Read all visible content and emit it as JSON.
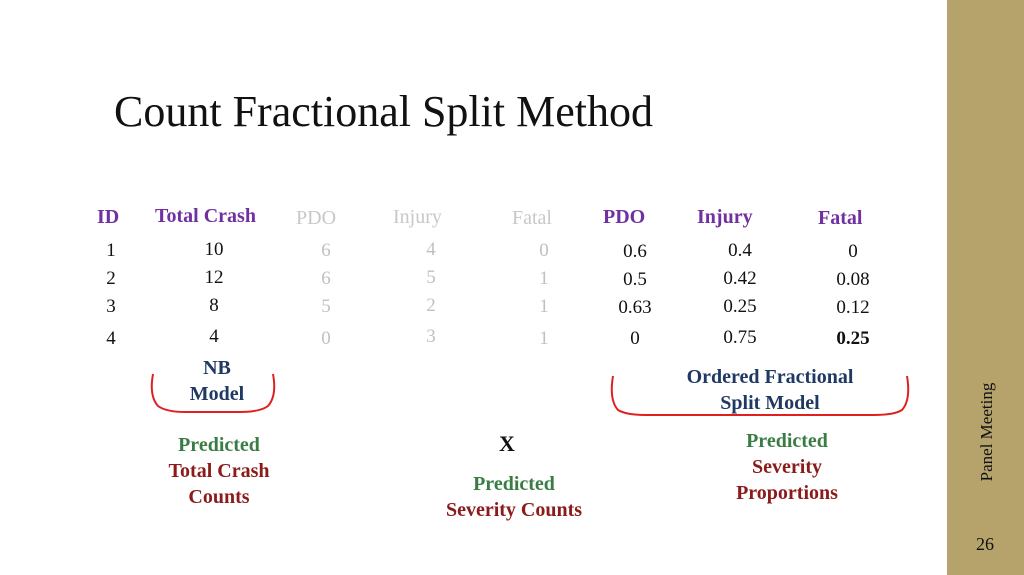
{
  "title": "Count Fractional Split Method",
  "sidebar": {
    "label": "Panel Meeting",
    "page_number": "26"
  },
  "table": {
    "headers": {
      "id": "ID",
      "total_crash": "Total Crash",
      "obs_pdo": "PDO",
      "obs_injury": "Injury",
      "obs_fatal": "Fatal",
      "pred_pdo": "PDO",
      "pred_injury": "Injury",
      "pred_fatal": "Fatal"
    },
    "columns": {
      "id": [
        "1",
        "2",
        "3",
        "4"
      ],
      "total_crash": [
        "10",
        "12",
        "8",
        "4"
      ],
      "obs_pdo": [
        "6",
        "6",
        "5",
        "0"
      ],
      "obs_injury": [
        "4",
        "5",
        "2",
        "3"
      ],
      "obs_fatal": [
        "0",
        "1",
        "1",
        "1"
      ],
      "pred_pdo": [
        "0.6",
        "0.5",
        "0.63",
        "0"
      ],
      "pred_injury": [
        "0.4",
        "0.42",
        "0.25",
        "0.75"
      ],
      "pred_fatal": [
        "0",
        "0.08",
        "0.12",
        "0.25"
      ]
    }
  },
  "labels": {
    "nb_model": [
      "NB",
      "Model"
    ],
    "ofs_model": [
      "Ordered Fractional",
      "Split Model"
    ],
    "pred_total": {
      "line1": "Predicted",
      "line2": "Total Crash",
      "line3": "Counts"
    },
    "multiply": "X",
    "pred_severity_counts": {
      "line1": "Predicted",
      "line2": "Severity Counts"
    },
    "pred_severity_props": {
      "line1": "Predicted",
      "line2": "Severity",
      "line3": "Proportions"
    }
  },
  "colors": {
    "sidebar": "#b5a36b",
    "header_purple": "#7030a0",
    "model_navy": "#1f3864",
    "predicted_green": "#3a7d44",
    "predicted_red": "#8b1a1a",
    "brace_red": "#e02020",
    "faded_gray": "#c0c0c0"
  }
}
